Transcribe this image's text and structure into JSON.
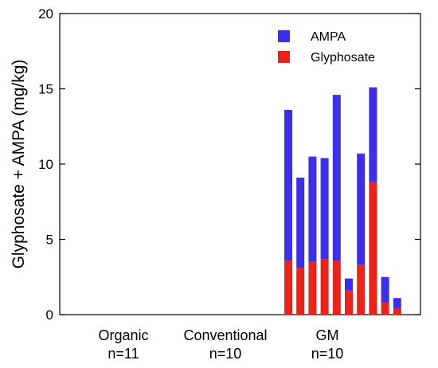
{
  "chart_data": {
    "type": "bar",
    "stacked": true,
    "ylabel": "Glyphosate + AMPA (mg/kg)",
    "ylim": [
      0,
      20
    ],
    "yticks": [
      0,
      5,
      10,
      15,
      20
    ],
    "grid": false,
    "legend_position": "top-right",
    "groups": [
      {
        "label_line1": "Organic",
        "label_line2": "n=11"
      },
      {
        "label_line1": "Conventional",
        "label_line2": "n=10"
      },
      {
        "label_line1": "GM",
        "label_line2": "n=10"
      }
    ],
    "series": [
      {
        "name": "Glyphosate",
        "color": "#e8241c",
        "values": [
          3.6,
          3.1,
          3.5,
          3.7,
          3.6,
          1.6,
          3.3,
          8.8,
          0.8,
          0.4
        ]
      },
      {
        "name": "AMPA",
        "color": "#3c2fe6",
        "values": [
          10.0,
          6.0,
          7.0,
          6.7,
          11.0,
          0.8,
          7.4,
          6.3,
          1.7,
          0.7
        ]
      }
    ],
    "gm_totals": [
      13.6,
      9.1,
      10.5,
      10.4,
      14.6,
      2.4,
      10.7,
      15.1,
      2.5,
      1.1
    ]
  }
}
